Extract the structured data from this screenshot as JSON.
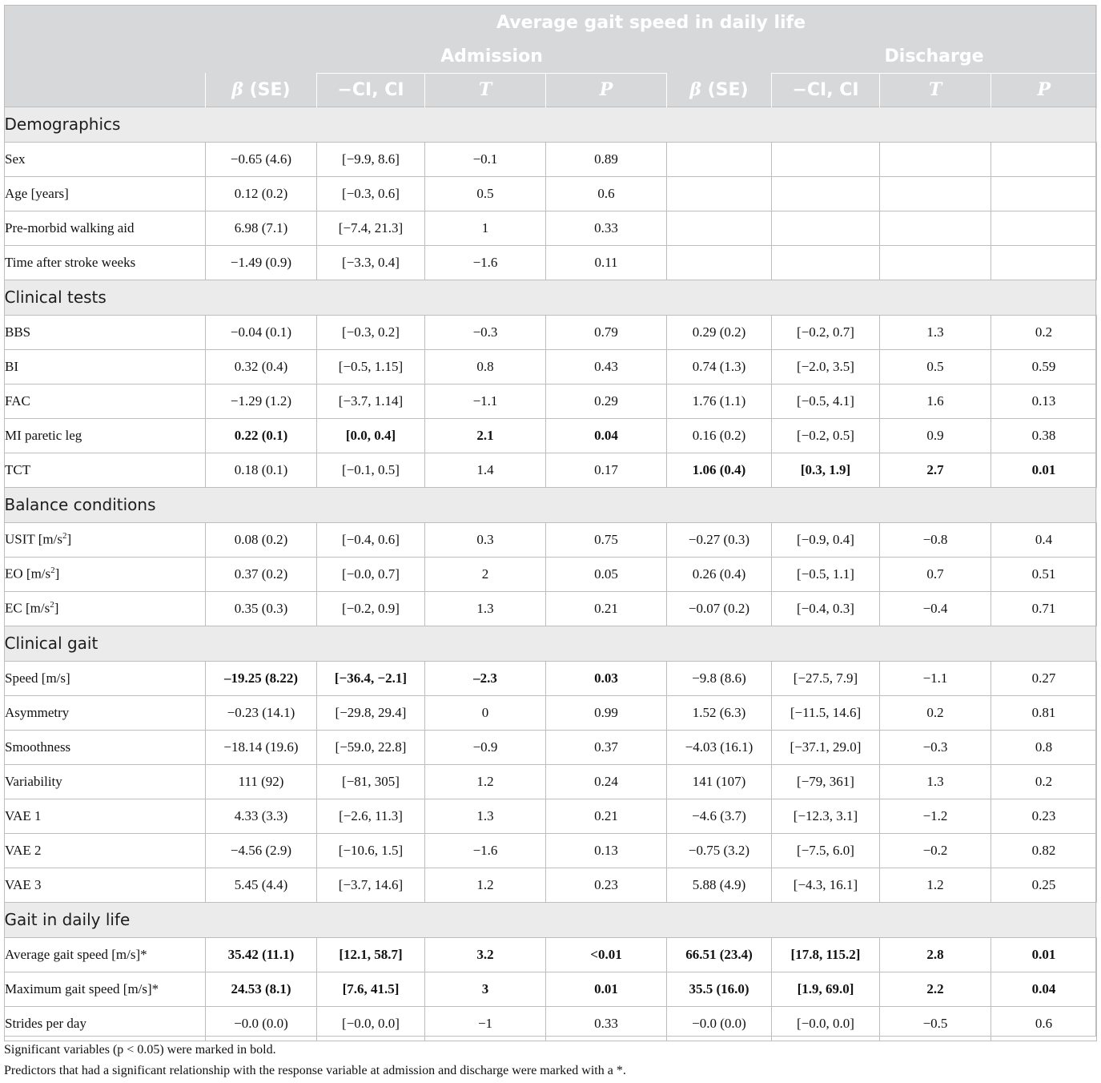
{
  "header": {
    "top_title": "Average gait speed in daily life",
    "groups": [
      "Admission",
      "Discharge"
    ],
    "cols": [
      "β (SE)",
      "−CI, CI",
      "T",
      "P",
      "β (SE)",
      "−CI, CI",
      "T",
      "P"
    ]
  },
  "sections": [
    {
      "title": "Demographics",
      "rows": [
        {
          "label": "Sex",
          "adm": [
            "−0.65 (4.6)",
            "[−9.9, 8.6]",
            "−0.1",
            "0.89"
          ],
          "dis": [
            "",
            "",
            "",
            ""
          ]
        },
        {
          "label": "Age [years]",
          "adm": [
            "0.12 (0.2)",
            "[−0.3, 0.6]",
            "0.5",
            "0.6"
          ],
          "dis": [
            "",
            "",
            "",
            ""
          ]
        },
        {
          "label": "Pre-morbid walking aid",
          "adm": [
            "6.98 (7.1)",
            "[−7.4, 21.3]",
            "1",
            "0.33"
          ],
          "dis": [
            "",
            "",
            "",
            ""
          ]
        },
        {
          "label": "Time after stroke weeks",
          "adm": [
            "−1.49 (0.9)",
            "[−3.3, 0.4]",
            "−1.6",
            "0.11"
          ],
          "dis": [
            "",
            "",
            "",
            ""
          ]
        }
      ]
    },
    {
      "title": "Clinical tests",
      "rows": [
        {
          "label": "BBS",
          "adm": [
            "−0.04 (0.1)",
            "[−0.3, 0.2]",
            "−0.3",
            "0.79"
          ],
          "dis": [
            "0.29 (0.2)",
            "[−0.2, 0.7]",
            "1.3",
            "0.2"
          ]
        },
        {
          "label": "BI",
          "adm": [
            "0.32 (0.4)",
            "[−0.5, 1.15]",
            "0.8",
            "0.43"
          ],
          "dis": [
            "0.74 (1.3)",
            "[−2.0, 3.5]",
            "0.5",
            "0.59"
          ]
        },
        {
          "label": "FAC",
          "adm": [
            "−1.29 (1.2)",
            "[−3.7, 1.14]",
            "−1.1",
            "0.29"
          ],
          "dis": [
            "1.76 (1.1)",
            "[−0.5, 4.1]",
            "1.6",
            "0.13"
          ]
        },
        {
          "label": "MI paretic leg",
          "adm": [
            "0.22 (0.1)",
            "[0.0, 0.4]",
            "2.1",
            "0.04"
          ],
          "dis": [
            "0.16 (0.2)",
            "[−0.2, 0.5]",
            "0.9",
            "0.38"
          ],
          "bold_adm": true
        },
        {
          "label": "TCT",
          "adm": [
            "0.18 (0.1)",
            "[−0.1, 0.5]",
            "1.4",
            "0.17"
          ],
          "dis": [
            "1.06 (0.4)",
            "[0.3, 1.9]",
            "2.7",
            "0.01"
          ],
          "bold_dis": true
        }
      ]
    },
    {
      "title": "Balance conditions",
      "rows": [
        {
          "label": "USIT [m/s",
          "sup": "2",
          "close": "]",
          "adm": [
            "0.08 (0.2)",
            "[−0.4, 0.6]",
            "0.3",
            "0.75"
          ],
          "dis": [
            "−0.27 (0.3)",
            "[−0.9, 0.4]",
            "−0.8",
            "0.4"
          ]
        },
        {
          "label": "EO [m/s",
          "sup": "2",
          "close": "]",
          "adm": [
            "0.37 (0.2)",
            "[−0.0, 0.7]",
            "2",
            "0.05"
          ],
          "dis": [
            "0.26 (0.4)",
            "[−0.5, 1.1]",
            "0.7",
            "0.51"
          ]
        },
        {
          "label": "EC [m/s",
          "sup": "2",
          "close": "]",
          "adm": [
            "0.35 (0.3)",
            "[−0.2, 0.9]",
            "1.3",
            "0.21"
          ],
          "dis": [
            "−0.07 (0.2)",
            "[−0.4, 0.3]",
            "−0.4",
            "0.71"
          ]
        }
      ]
    },
    {
      "title": "Clinical gait",
      "rows": [
        {
          "label": "Speed [m/s]",
          "adm": [
            "–19.25 (8.22)",
            "[−36.4, −2.1]",
            "–2.3",
            "0.03"
          ],
          "dis": [
            "−9.8 (8.6)",
            "[−27.5, 7.9]",
            "−1.1",
            "0.27"
          ],
          "bold_adm": true
        },
        {
          "label": "Asymmetry",
          "adm": [
            "−0.23 (14.1)",
            "[−29.8, 29.4]",
            "0",
            "0.99"
          ],
          "dis": [
            "1.52 (6.3)",
            "[−11.5, 14.6]",
            "0.2",
            "0.81"
          ]
        },
        {
          "label": "Smoothness",
          "adm": [
            "−18.14 (19.6)",
            "[−59.0, 22.8]",
            "−0.9",
            "0.37"
          ],
          "dis": [
            "−4.03 (16.1)",
            "[−37.1, 29.0]",
            "−0.3",
            "0.8"
          ]
        },
        {
          "label": "Variability",
          "adm": [
            "111 (92)",
            "[−81, 305]",
            "1.2",
            "0.24"
          ],
          "dis": [
            "141 (107)",
            "[−79, 361]",
            "1.3",
            "0.2"
          ]
        },
        {
          "label": "VAE 1",
          "adm": [
            "4.33 (3.3)",
            "[−2.6, 11.3]",
            "1.3",
            "0.21"
          ],
          "dis": [
            "−4.6 (3.7)",
            "[−12.3, 3.1]",
            "−1.2",
            "0.23"
          ]
        },
        {
          "label": "VAE 2",
          "adm": [
            "−4.56 (2.9)",
            "[−10.6, 1.5]",
            "−1.6",
            "0.13"
          ],
          "dis": [
            "−0.75 (3.2)",
            "[−7.5, 6.0]",
            "−0.2",
            "0.82"
          ]
        },
        {
          "label": "VAE 3",
          "adm": [
            "5.45 (4.4)",
            "[−3.7, 14.6]",
            "1.2",
            "0.23"
          ],
          "dis": [
            "5.88 (4.9)",
            "[−4.3, 16.1]",
            "1.2",
            "0.25"
          ]
        }
      ]
    },
    {
      "title": "Gait in daily life",
      "rows": [
        {
          "label": "Average gait speed [m/s]*",
          "adm": [
            "35.42 (11.1)",
            "[12.1, 58.7]",
            "3.2",
            "<0.01"
          ],
          "dis": [
            "66.51 (23.4)",
            "[17.8, 115.2]",
            "2.8",
            "0.01"
          ],
          "bold_adm": true,
          "bold_dis": true
        },
        {
          "label": "Maximum gait speed [m/s]*",
          "adm": [
            "24.53 (8.1)",
            "[7.6, 41.5]",
            "3",
            "0.01"
          ],
          "dis": [
            "35.5 (16.0)",
            "[1.9, 69.0]",
            "2.2",
            "0.04"
          ],
          "bold_adm": true,
          "bold_dis": true
        },
        {
          "label": "Strides per day",
          "adm": [
            "−0.0 (0.0)",
            "[−0.0, 0.0]",
            "−1",
            "0.33"
          ],
          "dis": [
            "−0.0 (0.0)",
            "[−0.0, 0.0]",
            "−0.5",
            "0.6"
          ]
        }
      ]
    }
  ],
  "footnotes": [
    "Significant variables (p < 0.05) were marked in bold.",
    "Predictors that had a significant relationship with the response variable at admission and discharge were marked with a *."
  ]
}
